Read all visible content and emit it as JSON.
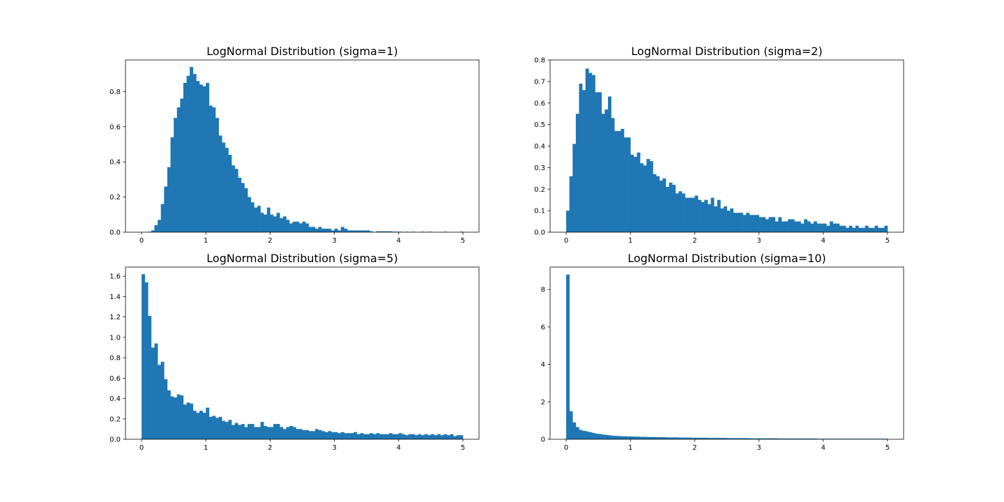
{
  "figure": {
    "background": "#ffffff",
    "bar_color": "#1f77b4"
  },
  "chart_data": [
    {
      "type": "bar",
      "title": "LogNormal Distribution (sigma=1)",
      "xlabel": "",
      "ylabel": "",
      "xlim": [
        -0.25,
        5.25
      ],
      "ylim": [
        0,
        0.98
      ],
      "xticks": [
        0,
        1,
        2,
        3,
        4,
        5
      ],
      "xtick_labels": [
        "0",
        "1",
        "2",
        "3",
        "4",
        "5"
      ],
      "yticks": [
        0.0,
        0.2,
        0.4,
        0.6,
        0.8
      ],
      "ytick_labels": [
        "0.0",
        "0.2",
        "0.4",
        "0.6",
        "0.8"
      ],
      "bin_range": [
        0,
        5
      ],
      "values": [
        0,
        0,
        0.003,
        0.01,
        0.04,
        0.07,
        0.16,
        0.26,
        0.37,
        0.54,
        0.65,
        0.71,
        0.76,
        0.85,
        0.89,
        0.94,
        0.9,
        0.86,
        0.84,
        0.83,
        0.85,
        0.72,
        0.71,
        0.65,
        0.55,
        0.51,
        0.48,
        0.44,
        0.38,
        0.36,
        0.31,
        0.28,
        0.25,
        0.2,
        0.17,
        0.14,
        0.15,
        0.11,
        0.1,
        0.14,
        0.1,
        0.09,
        0.11,
        0.08,
        0.09,
        0.07,
        0.05,
        0.06,
        0.06,
        0.05,
        0.06,
        0.05,
        0.03,
        0.03,
        0.02,
        0.03,
        0.02,
        0.02,
        0.02,
        0.01,
        0.02,
        0.01,
        0.03,
        0.02,
        0.01,
        0.01,
        0.01,
        0.01,
        0.01,
        0.01,
        0.01,
        0.005,
        0,
        0.005,
        0.005,
        0.005,
        0.005,
        0.005,
        0.003,
        0.003,
        0.003,
        0,
        0.003,
        0,
        0.003,
        0,
        0,
        0.003,
        0,
        0.003,
        0,
        0,
        0,
        0,
        0.003,
        0,
        0,
        0,
        0,
        0.003
      ]
    },
    {
      "type": "bar",
      "title": "LogNormal Distribution (sigma=2)",
      "xlabel": "",
      "ylabel": "",
      "xlim": [
        -0.25,
        5.25
      ],
      "ylim": [
        0,
        0.8
      ],
      "xticks": [
        0,
        1,
        2,
        3,
        4,
        5
      ],
      "xtick_labels": [
        "0",
        "1",
        "2",
        "3",
        "4",
        "5"
      ],
      "yticks": [
        0.0,
        0.1,
        0.2,
        0.3,
        0.4,
        0.5,
        0.6,
        0.7,
        0.8
      ],
      "ytick_labels": [
        "0.0",
        "0.1",
        "0.2",
        "0.3",
        "0.4",
        "0.5",
        "0.6",
        "0.7",
        "0.8"
      ],
      "bin_range": [
        0,
        5
      ],
      "values": [
        0.1,
        0.26,
        0.41,
        0.55,
        0.69,
        0.66,
        0.76,
        0.74,
        0.73,
        0.65,
        0.65,
        0.55,
        0.57,
        0.63,
        0.53,
        0.47,
        0.47,
        0.48,
        0.44,
        0.44,
        0.36,
        0.35,
        0.37,
        0.32,
        0.31,
        0.34,
        0.33,
        0.27,
        0.26,
        0.24,
        0.25,
        0.21,
        0.23,
        0.22,
        0.18,
        0.19,
        0.18,
        0.16,
        0.16,
        0.16,
        0.17,
        0.15,
        0.14,
        0.15,
        0.13,
        0.16,
        0.12,
        0.15,
        0.11,
        0.12,
        0.1,
        0.11,
        0.09,
        0.09,
        0.09,
        0.08,
        0.09,
        0.08,
        0.08,
        0.08,
        0.07,
        0.07,
        0.06,
        0.07,
        0.07,
        0.05,
        0.07,
        0.05,
        0.05,
        0.06,
        0.06,
        0.05,
        0.05,
        0.04,
        0.06,
        0.05,
        0.04,
        0.05,
        0.04,
        0.04,
        0.04,
        0.03,
        0.05,
        0.04,
        0.04,
        0.03,
        0.03,
        0.02,
        0.03,
        0.02,
        0.03,
        0.02,
        0.02,
        0.03,
        0.02,
        0.02,
        0.03,
        0.02,
        0.02,
        0.03
      ]
    },
    {
      "type": "bar",
      "title": "LogNormal Distribution (sigma=5)",
      "xlabel": "",
      "ylabel": "",
      "xlim": [
        -0.25,
        5.25
      ],
      "ylim": [
        0,
        1.69
      ],
      "xticks": [
        0,
        1,
        2,
        3,
        4,
        5
      ],
      "xtick_labels": [
        "0",
        "1",
        "2",
        "3",
        "4",
        "5"
      ],
      "yticks": [
        0.0,
        0.2,
        0.4,
        0.6,
        0.8,
        1.0,
        1.2,
        1.4,
        1.6
      ],
      "ytick_labels": [
        "0.0",
        "0.2",
        "0.4",
        "0.6",
        "0.8",
        "1.0",
        "1.2",
        "1.4",
        "1.6"
      ],
      "bin_range": [
        0,
        5
      ],
      "values": [
        1.62,
        1.54,
        1.21,
        0.9,
        0.94,
        0.73,
        0.76,
        0.59,
        0.48,
        0.42,
        0.41,
        0.44,
        0.43,
        0.34,
        0.36,
        0.35,
        0.28,
        0.26,
        0.28,
        0.26,
        0.31,
        0.22,
        0.23,
        0.21,
        0.22,
        0.18,
        0.17,
        0.19,
        0.14,
        0.16,
        0.14,
        0.15,
        0.12,
        0.15,
        0.15,
        0.12,
        0.12,
        0.17,
        0.13,
        0.12,
        0.12,
        0.15,
        0.15,
        0.12,
        0.1,
        0.12,
        0.13,
        0.12,
        0.1,
        0.1,
        0.09,
        0.09,
        0.08,
        0.08,
        0.1,
        0.09,
        0.08,
        0.07,
        0.08,
        0.07,
        0.07,
        0.06,
        0.07,
        0.06,
        0.06,
        0.06,
        0.07,
        0.05,
        0.06,
        0.05,
        0.05,
        0.06,
        0.05,
        0.06,
        0.05,
        0.05,
        0.05,
        0.06,
        0.05,
        0.05,
        0.06,
        0.05,
        0.04,
        0.05,
        0.05,
        0.04,
        0.05,
        0.04,
        0.05,
        0.04,
        0.05,
        0.04,
        0.05,
        0.04,
        0.05,
        0.04,
        0.05,
        0.03,
        0.04,
        0.04
      ]
    },
    {
      "type": "bar",
      "title": "LogNormal Distribution (sigma=10)",
      "xlabel": "",
      "ylabel": "",
      "xlim": [
        -0.25,
        5.25
      ],
      "ylim": [
        0,
        9.2
      ],
      "xticks": [
        0,
        1,
        2,
        3,
        4,
        5
      ],
      "xtick_labels": [
        "0",
        "1",
        "2",
        "3",
        "4",
        "5"
      ],
      "yticks": [
        0,
        2,
        4,
        6,
        8
      ],
      "ytick_labels": [
        "0",
        "2",
        "4",
        "6",
        "8"
      ],
      "bin_range": [
        0,
        5
      ],
      "values": [
        8.8,
        1.5,
        0.9,
        0.65,
        0.5,
        0.45,
        0.42,
        0.38,
        0.34,
        0.3,
        0.28,
        0.25,
        0.23,
        0.21,
        0.19,
        0.18,
        0.17,
        0.16,
        0.16,
        0.15,
        0.15,
        0.14,
        0.14,
        0.13,
        0.13,
        0.12,
        0.12,
        0.12,
        0.11,
        0.11,
        0.11,
        0.1,
        0.1,
        0.1,
        0.1,
        0.09,
        0.09,
        0.09,
        0.09,
        0.08,
        0.08,
        0.08,
        0.08,
        0.08,
        0.07,
        0.07,
        0.07,
        0.07,
        0.07,
        0.07,
        0.06,
        0.06,
        0.06,
        0.06,
        0.06,
        0.06,
        0.06,
        0.05,
        0.05,
        0.05,
        0.05,
        0.05,
        0.05,
        0.05,
        0.05,
        0.05,
        0.04,
        0.04,
        0.04,
        0.04,
        0.04,
        0.04,
        0.04,
        0.04,
        0.04,
        0.04,
        0.04,
        0.04,
        0.03,
        0.03,
        0.03,
        0.03,
        0.03,
        0.03,
        0.03,
        0.03,
        0.03,
        0.03,
        0.03,
        0.03,
        0.03,
        0.03,
        0.03,
        0.03,
        0.03,
        0.03,
        0.03,
        0.03,
        0.03,
        0.03
      ]
    }
  ]
}
